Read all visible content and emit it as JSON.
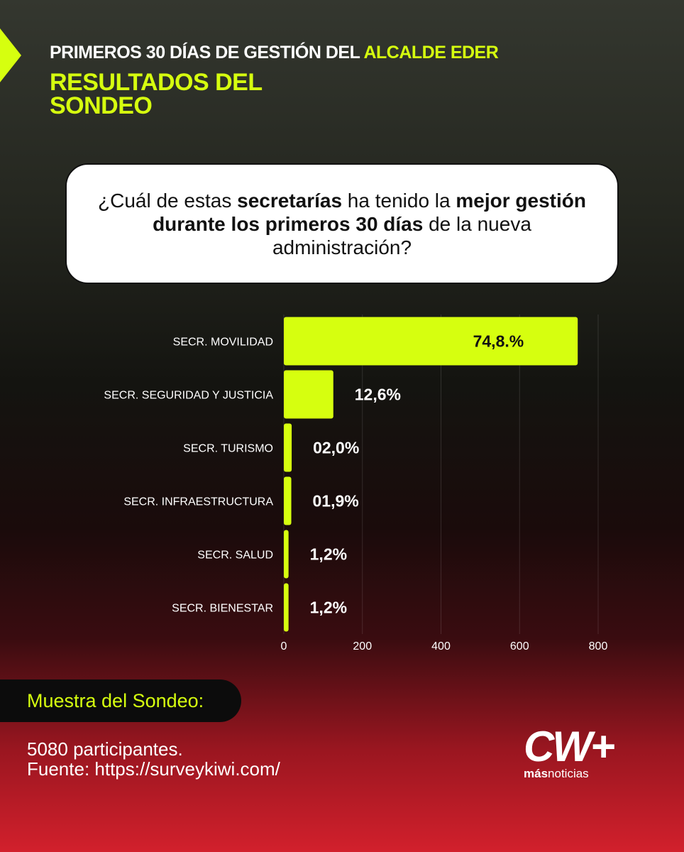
{
  "header": {
    "title_parts": [
      {
        "text": "PRIMEROS 30 DÍAS DE GESTIÓN DEL ",
        "highlight": false
      },
      {
        "text": "ALCALDE EDER",
        "highlight": true
      }
    ],
    "subtitle": "RESULTADOS DEL SONDEO"
  },
  "question": {
    "parts": [
      {
        "text": "¿Cuál de estas ",
        "bold": false
      },
      {
        "text": "secretarías",
        "bold": true
      },
      {
        "text": " ha tenido la ",
        "bold": false
      },
      {
        "text": "mejor gestión durante los primeros 30 días",
        "bold": true
      },
      {
        "text": " de la nueva administración?",
        "bold": false
      }
    ]
  },
  "chart_data": {
    "type": "bar",
    "orientation": "horizontal",
    "categories": [
      "SECR. MOVILIDAD",
      "SECR. SEGURIDAD Y JUSTICIA",
      "SECR. TURISMO",
      "SECR. INFRAESTRUCTURA",
      "SECR. SALUD",
      "SECR. BIENESTAR"
    ],
    "values": [
      748,
      126,
      20,
      19,
      12,
      12
    ],
    "value_labels": [
      "74,8.%",
      "12,6%",
      "02,0%",
      "01,9%",
      "1,2%",
      "1,2%"
    ],
    "color": "#d6ff0f",
    "xlim": [
      0,
      800
    ],
    "xticks": [
      0,
      200,
      400,
      600,
      800
    ],
    "grid": true
  },
  "footer": {
    "sample_label": "Muestra del Sondeo:",
    "participants": "5080 participantes.",
    "source": "Fuente: https://surveykiwi.com/"
  },
  "logo": {
    "mark": "CW+",
    "parts": [
      {
        "text": "más",
        "bold": true
      },
      {
        "text": "noticias",
        "bold": false
      }
    ]
  }
}
